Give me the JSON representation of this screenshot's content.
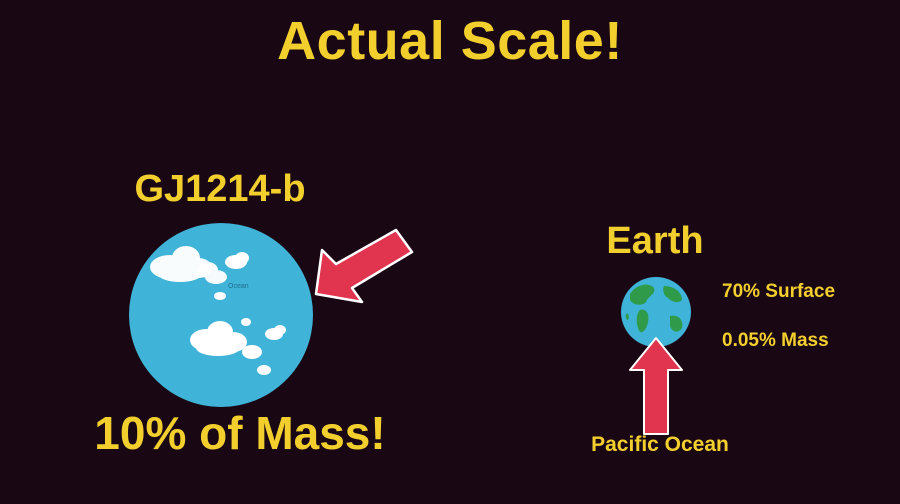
{
  "title": "Actual Scale!",
  "planet": {
    "name": "GJ1214-b",
    "mass_caption": "10% of Mass!",
    "surface_label": "Ocean"
  },
  "earth": {
    "name": "Earth",
    "surface_stat": "70% Surface",
    "mass_stat": "0.05% Mass",
    "pointer_label": "Pacific Ocean"
  },
  "colors": {
    "background": "#1a0714",
    "text": "#f3cf2e",
    "ocean": "#3fb3d8",
    "land": "#2e9a4a",
    "arrow": "#e0344f",
    "cloud": "#ffffff"
  },
  "icons": {
    "gj_arrow": "arrow-pointing-at-planet",
    "earth_arrow": "arrow-up-icon"
  }
}
